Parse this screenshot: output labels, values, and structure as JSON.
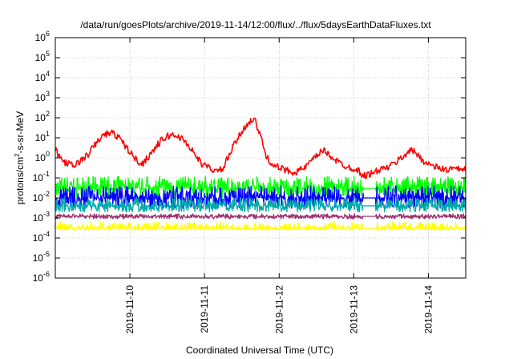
{
  "chart_data": {
    "type": "line",
    "title": "/data/run/goesPlots/archive/2019-11-14/12:00/flux/../flux/5daysEarthDataFluxes.txt",
    "xlabel": "Coordinated Universal Time (UTC)",
    "ylabel": {
      "base": "protons/cm",
      "sup": "2",
      "rest": "-s-sr-MeV"
    },
    "x_is_date": true,
    "x_range": [
      "2019-11-09T00:00",
      "2019-11-14T12:00"
    ],
    "x_ticks": [
      {
        "label": "2019-11-10",
        "t": "2019-11-10T00:00"
      },
      {
        "label": "2019-11-11",
        "t": "2019-11-11T00:00"
      },
      {
        "label": "2019-11-12",
        "t": "2019-11-12T00:00"
      },
      {
        "label": "2019-11-13",
        "t": "2019-11-13T00:00"
      },
      {
        "label": "2019-11-14",
        "t": "2019-11-14T00:00"
      }
    ],
    "y_scale": "log",
    "ylim": [
      1e-06,
      1000000.0
    ],
    "y_ticks": [
      {
        "base": "10",
        "exp": "-6",
        "value": 1e-06
      },
      {
        "base": "10",
        "exp": "-5",
        "value": 1e-05
      },
      {
        "base": "10",
        "exp": "-4",
        "value": 0.0001
      },
      {
        "base": "10",
        "exp": "-3",
        "value": 0.001
      },
      {
        "base": "10",
        "exp": "-2",
        "value": 0.01
      },
      {
        "base": "10",
        "exp": "-1",
        "value": 0.1
      },
      {
        "base": "10",
        "exp": "0",
        "value": 1
      },
      {
        "base": "10",
        "exp": "1",
        "value": 10
      },
      {
        "base": "10",
        "exp": "2",
        "value": 100
      },
      {
        "base": "10",
        "exp": "3",
        "value": 1000
      },
      {
        "base": "10",
        "exp": "4",
        "value": 10000
      },
      {
        "base": "10",
        "exp": "5",
        "value": 100000
      },
      {
        "base": "10",
        "exp": "6",
        "value": 1000000
      }
    ],
    "grid": true,
    "data_gap": [
      "2019-11-13T03:00",
      "2019-11-13T07:00"
    ],
    "series": [
      {
        "color": "#ff0000",
        "x": [
          "2019-11-09T00:00",
          "2019-11-09T02:00",
          "2019-11-09T04:00",
          "2019-11-09T06:00",
          "2019-11-09T08:00",
          "2019-11-09T10:00",
          "2019-11-09T12:00",
          "2019-11-09T14:00",
          "2019-11-09T16:00",
          "2019-11-09T18:00",
          "2019-11-09T20:00",
          "2019-11-09T22:00",
          "2019-11-10T00:00",
          "2019-11-10T02:00",
          "2019-11-10T04:00",
          "2019-11-10T06:00",
          "2019-11-10T08:00",
          "2019-11-10T10:00",
          "2019-11-10T12:00",
          "2019-11-10T14:00",
          "2019-11-10T16:00",
          "2019-11-10T18:00",
          "2019-11-10T20:00",
          "2019-11-10T22:00",
          "2019-11-11T00:00",
          "2019-11-11T02:00",
          "2019-11-11T04:00",
          "2019-11-11T06:00",
          "2019-11-11T08:00",
          "2019-11-11T10:00",
          "2019-11-11T12:00",
          "2019-11-11T14:00",
          "2019-11-11T16:00",
          "2019-11-11T18:00",
          "2019-11-11T20:00",
          "2019-11-11T22:00",
          "2019-11-12T00:00",
          "2019-11-12T02:00",
          "2019-11-12T04:00",
          "2019-11-12T06:00",
          "2019-11-12T08:00",
          "2019-11-12T10:00",
          "2019-11-12T12:00",
          "2019-11-12T14:00",
          "2019-11-12T16:00",
          "2019-11-12T18:00",
          "2019-11-12T20:00",
          "2019-11-12T22:00",
          "2019-11-13T00:00",
          "2019-11-13T02:00",
          "2019-11-13T03:00",
          "2019-11-13T07:00",
          "2019-11-13T08:00",
          "2019-11-13T10:00",
          "2019-11-13T12:00",
          "2019-11-13T14:00",
          "2019-11-13T16:00",
          "2019-11-13T18:00",
          "2019-11-13T20:00",
          "2019-11-13T22:00",
          "2019-11-14T00:00",
          "2019-11-14T02:00",
          "2019-11-14T04:00",
          "2019-11-14T06:00",
          "2019-11-14T08:00",
          "2019-11-14T10:00",
          "2019-11-14T12:00"
        ],
        "y": [
          2.5,
          0.8,
          0.5,
          0.4,
          0.7,
          1.2,
          3,
          8,
          15,
          18,
          12,
          5,
          2,
          0.8,
          0.5,
          1.2,
          3,
          7,
          12,
          14,
          11,
          6,
          2.5,
          0.8,
          0.4,
          0.3,
          0.2,
          0.3,
          1.5,
          6,
          20,
          60,
          90,
          12,
          1,
          0.5,
          0.3,
          0.25,
          0.2,
          0.22,
          0.3,
          0.6,
          1.2,
          2.5,
          1.5,
          0.8,
          0.5,
          0.35,
          0.3,
          0.2,
          0.12,
          0.2,
          0.25,
          0.3,
          0.4,
          0.7,
          1.2,
          2.5,
          1.8,
          0.8,
          0.5,
          0.35,
          0.3,
          0.25,
          0.3,
          0.25,
          0.3
        ]
      },
      {
        "color": "#00ff00",
        "x": [
          "2019-11-09T00:00",
          "2019-11-14T12:00"
        ],
        "y": [
          0.03,
          0.03
        ],
        "band_low": 0.01,
        "band_high": 0.12
      },
      {
        "color": "#0000ff",
        "x": [
          "2019-11-09T00:00",
          "2019-11-14T12:00"
        ],
        "y": [
          0.01,
          0.01
        ],
        "band_low": 0.003,
        "band_high": 0.04
      },
      {
        "color": "#00aaaa",
        "x": [
          "2019-11-09T00:00",
          "2019-11-14T12:00"
        ],
        "y": [
          0.004,
          0.004
        ],
        "band_low": 0.002,
        "band_high": 0.01
      },
      {
        "color": "#9b3070",
        "x": [
          "2019-11-09T00:00",
          "2019-11-14T12:00"
        ],
        "y": [
          0.0012,
          0.0012
        ],
        "band_low": 0.0009,
        "band_high": 0.0016
      },
      {
        "color": "#ffff00",
        "x": [
          "2019-11-09T00:00",
          "2019-11-14T12:00"
        ],
        "y": [
          0.0003,
          0.0003
        ],
        "band_low": 0.00025,
        "band_high": 0.0006
      }
    ]
  }
}
